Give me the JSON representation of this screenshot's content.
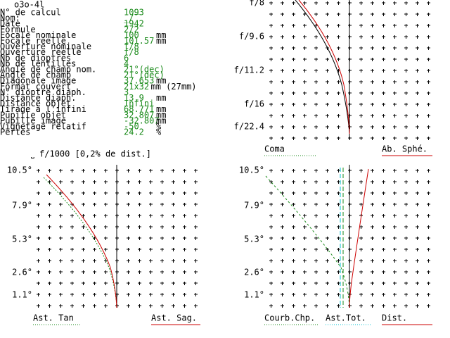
{
  "title": "o3o-4l",
  "fields": [
    {
      "label": "N° de calcul",
      "value": "1093"
    },
    {
      "label": "Nom:",
      "value": "_/‾"
    },
    {
      "label": "Date",
      "value": "1942"
    },
    {
      "label": "Formule",
      "value": "2/2"
    },
    {
      "label": "Focale nominale",
      "value": "100",
      "unit": "mm"
    },
    {
      "label": "Focale réelle",
      "value": "101.57",
      "unit": "mm"
    },
    {
      "label": "Ouverture nominale",
      "value": "f/8"
    },
    {
      "label": "Ouverture réelle",
      "value": "f/8"
    },
    {
      "label": "Nb de dioptres",
      "value": "6"
    },
    {
      "label": "Nb de lentilles",
      "value": "4"
    },
    {
      "label": "Angle de champ nom.",
      "value": "21°(dec)"
    },
    {
      "label": "Angle de champ",
      "value": "21°(dec)"
    },
    {
      "label": "Diagonale image",
      "value": "37.653",
      "unit": "mm"
    },
    {
      "label": "Format couvert",
      "value": "21x32",
      "unit": "mm (27mm)"
    },
    {
      "label": "N° dioptre diaph.",
      "value": "3"
    },
    {
      "label": "Distance diaph.",
      "value": "13.9",
      "unit": "mm"
    },
    {
      "label": "Distance objet",
      "value": "Infini"
    },
    {
      "label": "Tirage à l'infini",
      "value": "68.771",
      "unit": "mm"
    },
    {
      "label": "Pupille objet",
      "value": "32.807",
      "unit": "mm"
    },
    {
      "label": "Pupille image",
      "value": "-32.807",
      "unit": "mm"
    },
    {
      "label": "Vignetage relatif",
      "value": "-50",
      "unit": "%"
    },
    {
      "label": "Pertes",
      "value": "24.2",
      "unit": "%"
    }
  ],
  "scale_caption": "⎵ f/1000 [0,2% de dist.]",
  "top_chart": {
    "y_labels": [
      "f/8",
      "f/9.6",
      "f/11.2",
      "f/16",
      "f/22.4"
    ],
    "legend": [
      "Coma",
      "Ab. Sphé."
    ]
  },
  "bottom_left_chart": {
    "y_labels": [
      "10.5°",
      "7.9°",
      "5.3°",
      "2.6°",
      "1.1°"
    ],
    "legend": [
      "Ast. Tan",
      "Ast. Sag."
    ]
  },
  "bottom_right_chart": {
    "y_labels": [
      "10.5°",
      "7.9°",
      "5.3°",
      "2.6°",
      "1.1°"
    ],
    "legend": [
      "Courb.Chp.",
      "Ast.Tot.",
      "Dist."
    ]
  }
}
